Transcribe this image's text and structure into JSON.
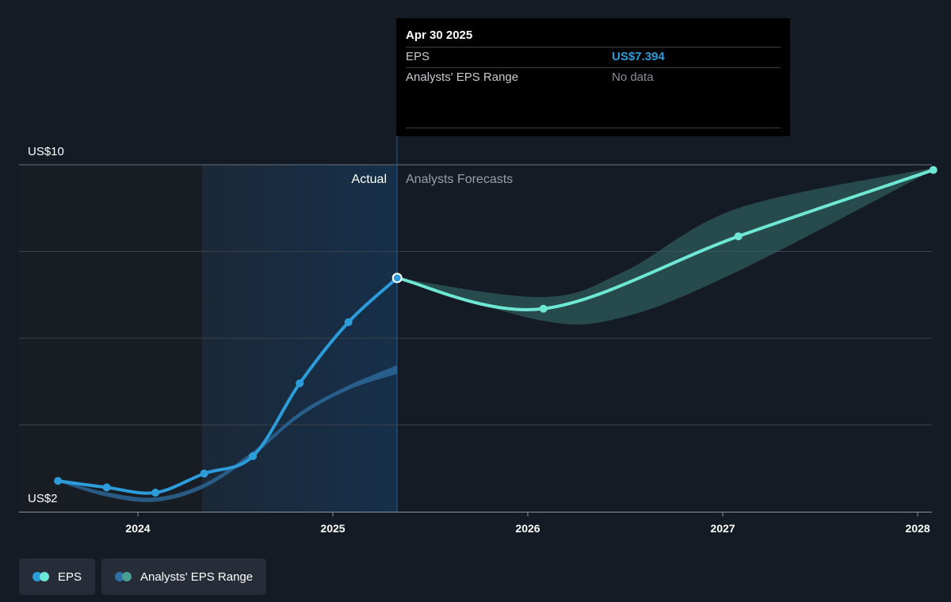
{
  "chart_data": {
    "type": "line",
    "y_labels": {
      "top": "US$10",
      "bottom": "US$2"
    },
    "ylim": [
      2,
      10
    ],
    "x_ticks": [
      "2024",
      "2025",
      "2026",
      "2027",
      "2028"
    ],
    "regions": {
      "actual": "Actual",
      "forecast": "Analysts Forecasts"
    },
    "grid": true,
    "series": [
      {
        "name": "EPS",
        "kind": "actual",
        "points": [
          {
            "x": 2023.59,
            "y": 2.71
          },
          {
            "x": 2023.84,
            "y": 2.56
          },
          {
            "x": 2024.09,
            "y": 2.44
          },
          {
            "x": 2024.34,
            "y": 2.88
          },
          {
            "x": 2024.59,
            "y": 3.28
          },
          {
            "x": 2024.83,
            "y": 4.96
          },
          {
            "x": 2025.08,
            "y": 6.37
          },
          {
            "x": 2025.33,
            "y": 7.39
          }
        ]
      },
      {
        "name": "EPS",
        "kind": "forecast",
        "points": [
          {
            "x": 2025.33,
            "y": 7.39
          },
          {
            "x": 2026.08,
            "y": 6.68
          },
          {
            "x": 2027.08,
            "y": 8.35
          },
          {
            "x": 2028.08,
            "y": 9.88
          }
        ]
      }
    ],
    "ranges": [
      {
        "name": "Analysts' EPS Range",
        "kind": "actual",
        "points": [
          {
            "x": 2023.59,
            "y_low": 2.69,
            "y_high": 2.73
          },
          {
            "x": 2023.84,
            "y_low": 2.35,
            "y_high": 2.45
          },
          {
            "x": 2024.09,
            "y_low": 2.23,
            "y_high": 2.33
          },
          {
            "x": 2024.34,
            "y_low": 2.55,
            "y_high": 2.65
          },
          {
            "x": 2024.59,
            "y_low": 3.29,
            "y_high": 3.39
          },
          {
            "x": 2024.83,
            "y_low": 4.19,
            "y_high": 4.29
          },
          {
            "x": 2025.08,
            "y_low": 4.81,
            "y_high": 4.91
          },
          {
            "x": 2025.33,
            "y_low": 5.18,
            "y_high": 5.38
          }
        ]
      },
      {
        "name": "Analysts' EPS Range",
        "kind": "forecast",
        "points": [
          {
            "x": 2025.33,
            "y_low": 7.39,
            "y_high": 7.39
          },
          {
            "x": 2026.08,
            "y_low": 6.4,
            "y_high": 6.95
          },
          {
            "x": 2026.5,
            "y_low": 6.5,
            "y_high": 7.55
          },
          {
            "x": 2027.08,
            "y_low": 7.55,
            "y_high": 9.0
          },
          {
            "x": 2028.08,
            "y_low": 9.88,
            "y_high": 9.93
          }
        ]
      }
    ],
    "colors": {
      "actual": "#2d9cdb",
      "forecast": "#6ee7d4",
      "actual_range": "#2e6fa3",
      "forecast_range": "#2f5f5f"
    }
  },
  "tooltip": {
    "date": "Apr 30 2025",
    "rows": [
      {
        "label": "EPS",
        "value": "US$7.394"
      },
      {
        "label": "Analysts' EPS Range",
        "value": "No data"
      }
    ]
  },
  "legend": {
    "items": [
      {
        "label": "EPS",
        "colors": [
          "#2d9cdb",
          "#6ee7d4"
        ]
      },
      {
        "label": "Analysts' EPS Range",
        "colors": [
          "#2e6fa3",
          "#4a9e94"
        ]
      }
    ]
  }
}
